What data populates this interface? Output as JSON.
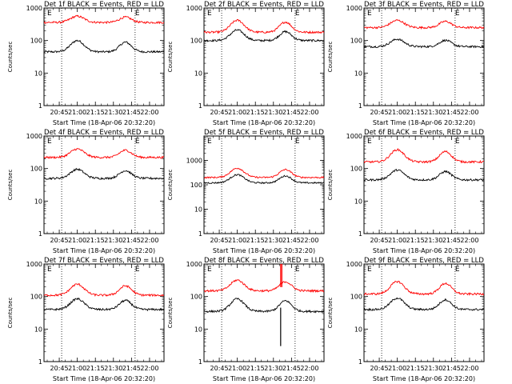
{
  "chart_data": [
    {
      "type": "line",
      "title": "Det 1f BLACK = Events, RED = LLD",
      "ylabel": "Counts/sec",
      "xlabel": "Start Time (18-Apr-06 20:32:20)",
      "x_ticks": [
        "20:45",
        "21:00",
        "21:15",
        "21:30",
        "21:45",
        "22:00"
      ],
      "y_ticks": [
        "1",
        "10",
        "100",
        "1000"
      ],
      "y_scale": "log",
      "ylim": [
        1,
        1000
      ],
      "xlim": [
        "20:32:20",
        "22:12"
      ],
      "markers": [
        {
          "label": "E",
          "time": "20:35"
        },
        {
          "label": "E",
          "time": "21:48"
        }
      ],
      "vlines": [
        "20:47",
        "21:48"
      ],
      "series": [
        {
          "color": "#000000",
          "base": 45,
          "peak": 100
        },
        {
          "color": "#ff0000",
          "base": 360,
          "peak": 560
        }
      ]
    },
    {
      "type": "line",
      "title": "Det 2f BLACK = Events, RED = LLD",
      "ylabel": "Counts/sec",
      "xlabel": "Start Time (18-Apr-06 20:32:20)",
      "x_ticks": [
        "20:45",
        "21:00",
        "21:15",
        "21:30",
        "21:45",
        "22:00"
      ],
      "y_ticks": [
        "1",
        "10",
        "100",
        "1000"
      ],
      "y_scale": "log",
      "ylim": [
        1,
        1000
      ],
      "xlim": [
        "20:32:20",
        "22:12"
      ],
      "markers": [
        {
          "label": "E",
          "time": "20:35"
        },
        {
          "label": "E",
          "time": "21:48"
        }
      ],
      "vlines": [
        "20:47",
        "21:48"
      ],
      "series": [
        {
          "color": "#000000",
          "base": 100,
          "peak": 210
        },
        {
          "color": "#ff0000",
          "base": 180,
          "peak": 420
        }
      ]
    },
    {
      "type": "line",
      "title": "Det 3f BLACK = Events, RED = LLD",
      "ylabel": "Counts/sec",
      "xlabel": "Start Time (18-Apr-06 20:32:20)",
      "x_ticks": [
        "20:45",
        "21:00",
        "21:15",
        "21:30",
        "21:45",
        "22:00"
      ],
      "y_ticks": [
        "1",
        "10",
        "100",
        "1000"
      ],
      "y_scale": "log",
      "ylim": [
        1,
        1000
      ],
      "xlim": [
        "20:32:20",
        "22:12"
      ],
      "markers": [
        {
          "label": "E",
          "time": "20:35"
        },
        {
          "label": "E",
          "time": "21:48"
        }
      ],
      "vlines": [
        "20:47",
        "21:48"
      ],
      "series": [
        {
          "color": "#000000",
          "base": 65,
          "peak": 110
        },
        {
          "color": "#ff0000",
          "base": 250,
          "peak": 420
        }
      ]
    },
    {
      "type": "line",
      "title": "Det 4f BLACK = Events, RED = LLD",
      "ylabel": "Counts/sec",
      "xlabel": "Start Time (18-Apr-06 20:32:20)",
      "x_ticks": [
        "20:45",
        "21:00",
        "21:15",
        "21:30",
        "21:45",
        "22:00"
      ],
      "y_ticks": [
        "1",
        "10",
        "100",
        "1000"
      ],
      "y_scale": "log",
      "ylim": [
        1,
        1000
      ],
      "xlim": [
        "20:32:20",
        "22:12"
      ],
      "markers": [
        {
          "label": "E",
          "time": "20:35"
        },
        {
          "label": "E",
          "time": "21:48"
        }
      ],
      "vlines": [
        "20:47",
        "21:48"
      ],
      "series": [
        {
          "color": "#000000",
          "base": 50,
          "peak": 95
        },
        {
          "color": "#ff0000",
          "base": 220,
          "peak": 400
        }
      ]
    },
    {
      "type": "line",
      "title": "Det 5f BLACK = Events, RED = LLD",
      "ylabel": "Counts/sec",
      "xlabel": "Start Time (18-Apr-06 20:32:20)",
      "x_ticks": [
        "20:45",
        "21:00",
        "21:15",
        "21:30",
        "21:45",
        "22:00"
      ],
      "y_ticks": [
        "1",
        "10",
        "100",
        "1000"
      ],
      "y_scale": "log",
      "ylim": [
        1,
        10000
      ],
      "xlim": [
        "20:32:20",
        "22:12"
      ],
      "markers": [
        {
          "label": "E",
          "time": "20:35"
        },
        {
          "label": "E",
          "time": "21:48"
        }
      ],
      "vlines": [
        "20:47",
        "21:48"
      ],
      "series": [
        {
          "color": "#000000",
          "base": 120,
          "peak": 260
        },
        {
          "color": "#ff0000",
          "base": 200,
          "peak": 480
        }
      ]
    },
    {
      "type": "line",
      "title": "Det 6f BLACK = Events, RED = LLD",
      "ylabel": "Counts/sec",
      "xlabel": "Start Time (18-Apr-06 20:32:20)",
      "x_ticks": [
        "20:45",
        "21:00",
        "21:15",
        "21:30",
        "21:45",
        "22:00"
      ],
      "y_ticks": [
        "1",
        "10",
        "100",
        "1000"
      ],
      "y_scale": "log",
      "ylim": [
        1,
        1000
      ],
      "xlim": [
        "20:32:20",
        "22:12"
      ],
      "markers": [
        {
          "label": "E",
          "time": "20:35"
        },
        {
          "label": "E",
          "time": "21:48"
        }
      ],
      "vlines": [
        "20:47",
        "21:48"
      ],
      "series": [
        {
          "color": "#000000",
          "base": 45,
          "peak": 90
        },
        {
          "color": "#ff0000",
          "base": 160,
          "peak": 380
        }
      ]
    },
    {
      "type": "line",
      "title": "Det 7f BLACK = Events, RED = LLD",
      "ylabel": "Counts/sec",
      "xlabel": "Start Time (18-Apr-06 20:32:20)",
      "x_ticks": [
        "20:45",
        "21:00",
        "21:15",
        "21:30",
        "21:45",
        "22:00"
      ],
      "y_ticks": [
        "1",
        "10",
        "100",
        "1000"
      ],
      "y_scale": "log",
      "ylim": [
        1,
        1000
      ],
      "xlim": [
        "20:32:20",
        "22:12"
      ],
      "markers": [
        {
          "label": "E",
          "time": "20:35"
        },
        {
          "label": "E",
          "time": "21:48"
        }
      ],
      "vlines": [
        "20:47",
        "21:48"
      ],
      "series": [
        {
          "color": "#000000",
          "base": 40,
          "peak": 85
        },
        {
          "color": "#ff0000",
          "base": 110,
          "peak": 240
        }
      ]
    },
    {
      "type": "line",
      "title": "Det 8f BLACK = Events, RED = LLD",
      "ylabel": "Counts/sec",
      "xlabel": "Start Time (18-Apr-06 20:32:20)",
      "x_ticks": [
        "20:45",
        "21:00",
        "21:15",
        "21:30",
        "21:45",
        "22:00"
      ],
      "y_ticks": [
        "1",
        "10",
        "100",
        "1000"
      ],
      "y_scale": "log",
      "ylim": [
        1,
        1000
      ],
      "xlim": [
        "20:32:20",
        "22:12"
      ],
      "markers": [
        {
          "label": "E",
          "time": "20:35"
        },
        {
          "label": "E",
          "time": "21:48"
        }
      ],
      "vlines": [
        "20:47",
        "21:48"
      ],
      "series": [
        {
          "color": "#000000",
          "base": 35,
          "peak": 85
        },
        {
          "color": "#ff0000",
          "base": 150,
          "peak": 320
        }
      ],
      "spikes": [
        {
          "time": "21:36",
          "series": 1,
          "to": 1000
        },
        {
          "time": "21:37",
          "series": 1,
          "to": 1000
        },
        {
          "time": "21:36",
          "series": 0,
          "to": 3
        }
      ]
    },
    {
      "type": "line",
      "title": "Det 9f BLACK = Events, RED = LLD",
      "ylabel": "Counts/sec",
      "xlabel": "Start Time (18-Apr-06 20:32:20)",
      "x_ticks": [
        "20:45",
        "21:00",
        "21:15",
        "21:30",
        "21:45",
        "22:00"
      ],
      "y_ticks": [
        "1",
        "10",
        "100",
        "1000"
      ],
      "y_scale": "log",
      "ylim": [
        1,
        1000
      ],
      "xlim": [
        "20:32:20",
        "22:12"
      ],
      "markers": [
        {
          "label": "E",
          "time": "20:35"
        },
        {
          "label": "E",
          "time": "21:48"
        }
      ],
      "vlines": [
        "20:47",
        "21:48"
      ],
      "series": [
        {
          "color": "#000000",
          "base": 40,
          "peak": 90
        },
        {
          "color": "#ff0000",
          "base": 120,
          "peak": 290
        }
      ]
    }
  ]
}
